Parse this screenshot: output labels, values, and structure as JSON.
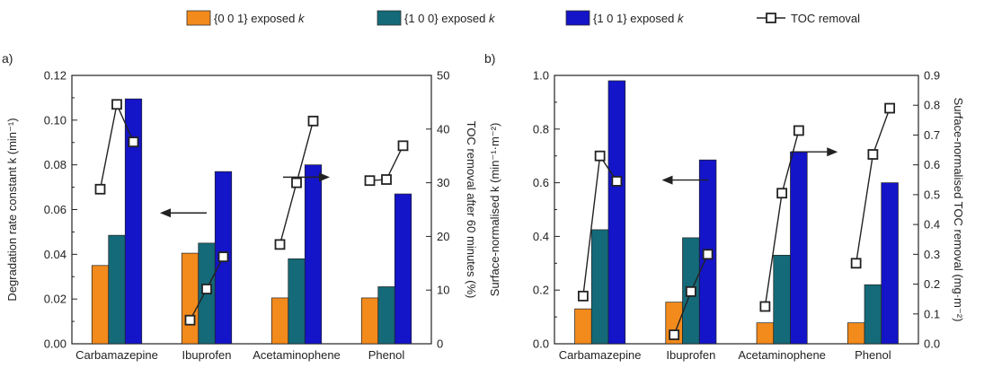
{
  "legend": [
    {
      "name": "{0 0 1} exposed ",
      "italic": "k",
      "color": "#f28a1c"
    },
    {
      "name": "{1 0 0} exposed ",
      "italic": "k",
      "color": "#146a78"
    },
    {
      "name": "{1 0 1} exposed ",
      "italic": "k",
      "color": "#1414c8"
    },
    {
      "name": "TOC removal",
      "marker": "square-line"
    }
  ],
  "chart_data": [
    {
      "panel_label": "a)",
      "type": "bar",
      "categories": [
        "Carbamazepine",
        "Ibuprofen",
        "Acetaminophene",
        "Phenol"
      ],
      "series": [
        {
          "name": "{0 0 1} exposed k",
          "values": [
            0.035,
            0.0405,
            0.0205,
            0.0205
          ]
        },
        {
          "name": "{1 0 0} exposed k",
          "values": [
            0.0485,
            0.045,
            0.038,
            0.0255
          ]
        },
        {
          "name": "{1 0 1} exposed k",
          "values": [
            0.1095,
            0.077,
            0.08,
            0.067
          ]
        }
      ],
      "line_series": {
        "name": "TOC removal",
        "axis": "right",
        "values": [
          [
            28.8,
            44.6,
            37.6
          ],
          [
            4.4,
            10.2,
            16.2
          ],
          [
            18.5,
            30.0,
            41.5
          ],
          [
            30.4,
            30.6,
            36.9
          ]
        ]
      },
      "ylabel": "Degradation rate constant k (min⁻¹)",
      "ylabel_right": "TOC removal after 60 minutes (%)",
      "ylim": [
        0,
        0.12
      ],
      "yticks": [
        "0.00",
        "0.02",
        "0.04",
        "0.06",
        "0.08",
        "0.10",
        "0.12"
      ],
      "ylim_right": [
        0,
        50
      ],
      "yticks_right": [
        "0",
        "10",
        "20",
        "30",
        "40",
        "50"
      ],
      "arrows": [
        {
          "direction": "left",
          "x": 1.0,
          "y": 0.0585
        },
        {
          "direction": "right",
          "x": 2.35,
          "y": 0.0745
        }
      ]
    },
    {
      "panel_label": "b)",
      "type": "bar",
      "categories": [
        "Carbamazepine",
        "Ibuprofen",
        "Acetaminophene",
        "Phenol"
      ],
      "series": [
        {
          "name": "{0 0 1} exposed k",
          "values": [
            0.13,
            0.155,
            0.078,
            0.078
          ]
        },
        {
          "name": "{1 0 0} exposed k",
          "values": [
            0.425,
            0.395,
            0.33,
            0.22
          ]
        },
        {
          "name": "{1 0 1} exposed k",
          "values": [
            0.98,
            0.685,
            0.715,
            0.6
          ]
        }
      ],
      "line_series": {
        "name": "TOC removal",
        "axis": "right",
        "values": [
          [
            0.16,
            0.63,
            0.545
          ],
          [
            0.03,
            0.175,
            0.3
          ],
          [
            0.125,
            0.505,
            0.715
          ],
          [
            0.27,
            0.635,
            0.79
          ]
        ]
      },
      "ylabel": "Surface-normalised k (min⁻¹·m⁻²)",
      "ylabel_right": "Surface-normalised TOC removal (mg·m⁻²)",
      "ylim": [
        0,
        1.0
      ],
      "yticks": [
        "0.0",
        "0.2",
        "0.4",
        "0.6",
        "0.8",
        "1.0"
      ],
      "ylim_right": [
        0,
        0.9
      ],
      "yticks_right": [
        "0.0",
        "0.1",
        "0.2",
        "0.3",
        "0.4",
        "0.5",
        "0.6",
        "0.7",
        "0.8",
        "0.9"
      ],
      "arrows": [
        {
          "direction": "left",
          "x": 1.2,
          "y": 0.61
        },
        {
          "direction": "right",
          "x": 2.6,
          "y": 0.715
        }
      ]
    }
  ],
  "colors": {
    "c001": "#f28a1c",
    "c100": "#146a78",
    "c101": "#1414c8",
    "line": "#222222"
  }
}
